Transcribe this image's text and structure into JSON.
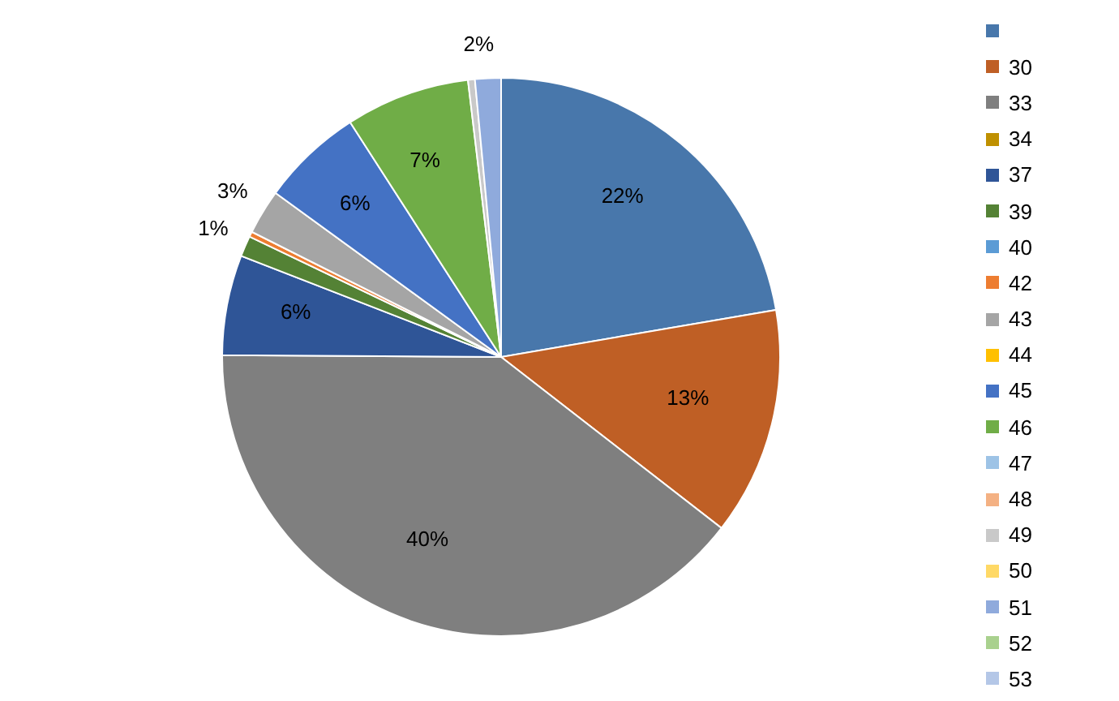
{
  "chart_data": {
    "type": "pie",
    "categories": [
      null,
      "30",
      "33",
      "34",
      "37",
      "39",
      "40",
      "42",
      "43",
      "44",
      "45",
      "46",
      "47",
      "48",
      "49",
      "50",
      "51",
      "52",
      "53"
    ],
    "values": [
      22.3,
      13.2,
      39.6,
      0,
      5.8,
      1.2,
      0,
      0.3,
      2.6,
      0,
      5.9,
      7.2,
      0,
      0,
      0.4,
      0,
      1.5,
      0,
      0
    ],
    "value_labels": [
      "22%",
      "13%",
      "40%",
      null,
      "6%",
      "1%",
      null,
      null,
      "3%",
      null,
      "6%",
      "7%",
      null,
      null,
      null,
      null,
      "2%",
      null,
      null
    ],
    "colors": [
      "#4877ab",
      "#bf5f25",
      "#7f7f7f",
      "#bf9000",
      "#2f5597",
      "#548235",
      "#5b9bd5",
      "#ed7d31",
      "#a5a5a5",
      "#ffc000",
      "#4472c4",
      "#70ad47",
      "#9dc3e6",
      "#f4b183",
      "#c9c9c9",
      "#ffd966",
      "#8faadc",
      "#a9d18e",
      "#b4c7e7"
    ],
    "legend": "right"
  }
}
